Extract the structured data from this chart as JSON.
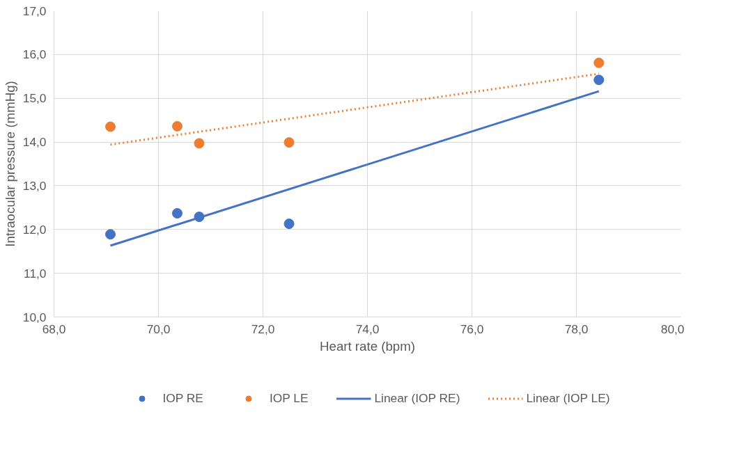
{
  "chart_data": {
    "type": "scatter",
    "xlabel": "Heart rate (bpm)",
    "ylabel": "Intraocular pressure (mmHg)",
    "xlim": [
      68,
      80
    ],
    "ylim": [
      10,
      17
    ],
    "xticks": [
      {
        "value": 68,
        "label": "68,0"
      },
      {
        "value": 70,
        "label": "70,0"
      },
      {
        "value": 72,
        "label": "72,0"
      },
      {
        "value": 74,
        "label": "74,0"
      },
      {
        "value": 76,
        "label": "76,0"
      },
      {
        "value": 78,
        "label": "78,0"
      },
      {
        "value": 80,
        "label": "80,0"
      }
    ],
    "yticks": [
      {
        "value": 10,
        "label": "10,0"
      },
      {
        "value": 11,
        "label": "11,0"
      },
      {
        "value": 12,
        "label": "12,0"
      },
      {
        "value": 13,
        "label": "13,0"
      },
      {
        "value": 14,
        "label": "14,0"
      },
      {
        "value": 15,
        "label": "15,0"
      },
      {
        "value": 16,
        "label": "16,0"
      },
      {
        "value": 17,
        "label": "17,0"
      }
    ],
    "grid": true,
    "legend": "bottom",
    "marker": "circle",
    "series": [
      {
        "name": "IOP RE",
        "color": "#4472c4",
        "x": [
          69.08,
          70.36,
          70.78,
          72.5,
          78.43
        ],
        "values": [
          11.89,
          12.37,
          12.29,
          12.13,
          15.42
        ]
      },
      {
        "name": "IOP LE",
        "color": "#ed7d31",
        "x": [
          69.08,
          70.36,
          70.78,
          72.5,
          78.43
        ],
        "values": [
          14.35,
          14.36,
          13.97,
          13.99,
          15.81
        ]
      },
      {
        "name": "Linear (IOP RE)",
        "type": "line",
        "marker": "none",
        "line_style": "solid",
        "color": "#4472c4",
        "x": [
          69.08,
          78.43
        ],
        "values": [
          11.63,
          15.16
        ]
      },
      {
        "name": "Linear (IOP LE)",
        "type": "line",
        "marker": "none",
        "line_style": "dotted",
        "color": "#ed7d31",
        "x": [
          69.08,
          78.43
        ],
        "values": [
          13.94,
          15.56
        ]
      }
    ]
  }
}
